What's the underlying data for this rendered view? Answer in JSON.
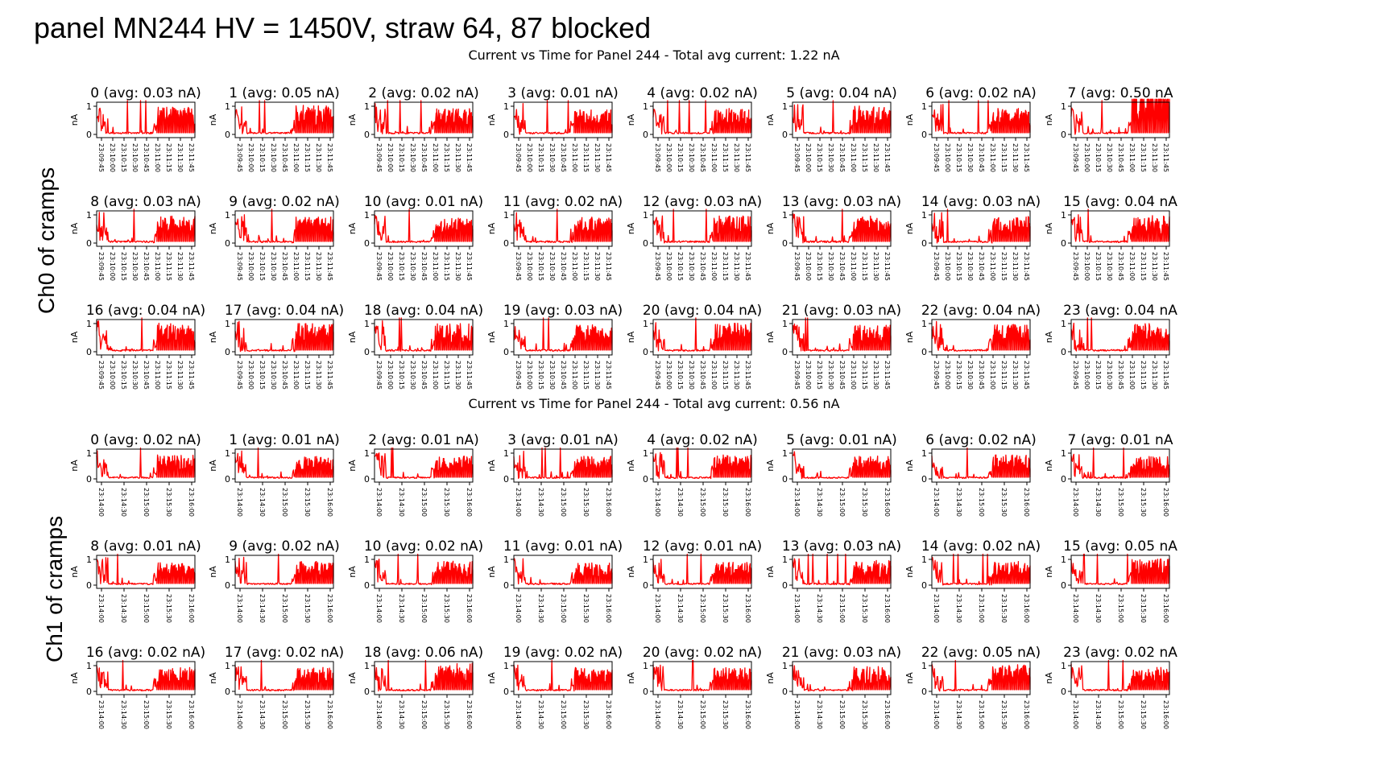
{
  "page": {
    "title": "panel MN244 HV = 1450V, straw 64, 87 blocked",
    "side_labels": [
      "Ch0 of cramps",
      "Ch1 of cramps"
    ]
  },
  "colors": {
    "trace": "#ff0000",
    "axis": "#000000"
  },
  "chart_data": [
    {
      "type": "line",
      "title": "Current vs Time for Panel 244 - Total avg current: 1.22 nA",
      "ylabel": "nA",
      "yticks": [
        "0",
        "1"
      ],
      "ylim": [
        0,
        1
      ],
      "xticks": [
        "23:09:45",
        "23:10:00",
        "23:10:15",
        "23:10:30",
        "23:10:45",
        "23:11:00",
        "23:11:15",
        "23:11:30",
        "23:11:45"
      ],
      "subplots": [
        {
          "title": "0 (avg: 0.03 nA)",
          "avg": 0.03
        },
        {
          "title": "1 (avg: 0.05 nA)",
          "avg": 0.05
        },
        {
          "title": "2 (avg: 0.02 nA)",
          "avg": 0.02
        },
        {
          "title": "3 (avg: 0.01 nA)",
          "avg": 0.01
        },
        {
          "title": "4 (avg: 0.02 nA)",
          "avg": 0.02
        },
        {
          "title": "5 (avg: 0.04 nA)",
          "avg": 0.04
        },
        {
          "title": "6 (avg: 0.02 nA)",
          "avg": 0.02
        },
        {
          "title": "7 (avg: 0.50 nA",
          "avg": 0.5
        },
        {
          "title": "8 (avg: 0.03 nA)",
          "avg": 0.03
        },
        {
          "title": "9 (avg: 0.02 nA)",
          "avg": 0.02
        },
        {
          "title": "10 (avg: 0.01 nA)",
          "avg": 0.01
        },
        {
          "title": "11 (avg: 0.02 nA)",
          "avg": 0.02
        },
        {
          "title": "12 (avg: 0.03 nA)",
          "avg": 0.03
        },
        {
          "title": "13 (avg: 0.03 nA)",
          "avg": 0.03
        },
        {
          "title": "14 (avg: 0.03 nA)",
          "avg": 0.03
        },
        {
          "title": "15 (avg: 0.04 nA",
          "avg": 0.04
        },
        {
          "title": "16 (avg: 0.04 nA)",
          "avg": 0.04
        },
        {
          "title": "17 (avg: 0.04 nA)",
          "avg": 0.04
        },
        {
          "title": "18 (avg: 0.04 nA)",
          "avg": 0.04
        },
        {
          "title": "19 (avg: 0.03 nA)",
          "avg": 0.03
        },
        {
          "title": "20 (avg: 0.04 nA)",
          "avg": 0.04
        },
        {
          "title": "21 (avg: 0.03 nA)",
          "avg": 0.03
        },
        {
          "title": "22 (avg: 0.04 nA)",
          "avg": 0.04
        },
        {
          "title": "23 (avg: 0.04 nA",
          "avg": 0.04
        }
      ]
    },
    {
      "type": "line",
      "title": "Current vs Time for Panel 244 - Total avg current: 0.56 nA",
      "ylabel": "nA",
      "yticks": [
        "0",
        "1"
      ],
      "ylim": [
        0,
        1
      ],
      "xticks": [
        "23:14:00",
        "23:14:30",
        "23:15:00",
        "23:15:30",
        "23:16:00"
      ],
      "subplots": [
        {
          "title": "0 (avg: 0.02 nA)",
          "avg": 0.02
        },
        {
          "title": "1 (avg: 0.01 nA)",
          "avg": 0.01
        },
        {
          "title": "2 (avg: 0.01 nA)",
          "avg": 0.01
        },
        {
          "title": "3 (avg: 0.01 nA)",
          "avg": 0.01
        },
        {
          "title": "4 (avg: 0.02 nA)",
          "avg": 0.02
        },
        {
          "title": "5 (avg: 0.01 nA)",
          "avg": 0.01
        },
        {
          "title": "6 (avg: 0.02 nA)",
          "avg": 0.02
        },
        {
          "title": "7 (avg: 0.01 nA",
          "avg": 0.01
        },
        {
          "title": "8 (avg: 0.01 nA)",
          "avg": 0.01
        },
        {
          "title": "9 (avg: 0.02 nA)",
          "avg": 0.02
        },
        {
          "title": "10 (avg: 0.02 nA)",
          "avg": 0.02
        },
        {
          "title": "11 (avg: 0.01 nA)",
          "avg": 0.01
        },
        {
          "title": "12 (avg: 0.01 nA)",
          "avg": 0.01
        },
        {
          "title": "13 (avg: 0.03 nA)",
          "avg": 0.03
        },
        {
          "title": "14 (avg: 0.02 nA)",
          "avg": 0.02
        },
        {
          "title": "15 (avg: 0.05 nA",
          "avg": 0.05
        },
        {
          "title": "16 (avg: 0.02 nA)",
          "avg": 0.02
        },
        {
          "title": "17 (avg: 0.02 nA)",
          "avg": 0.02
        },
        {
          "title": "18 (avg: 0.06 nA)",
          "avg": 0.06
        },
        {
          "title": "19 (avg: 0.02 nA)",
          "avg": 0.02
        },
        {
          "title": "20 (avg: 0.02 nA)",
          "avg": 0.02
        },
        {
          "title": "21 (avg: 0.03 nA)",
          "avg": 0.03
        },
        {
          "title": "22 (avg: 0.05 nA)",
          "avg": 0.05
        },
        {
          "title": "23 (avg: 0.02 nA",
          "avg": 0.02
        }
      ]
    }
  ]
}
